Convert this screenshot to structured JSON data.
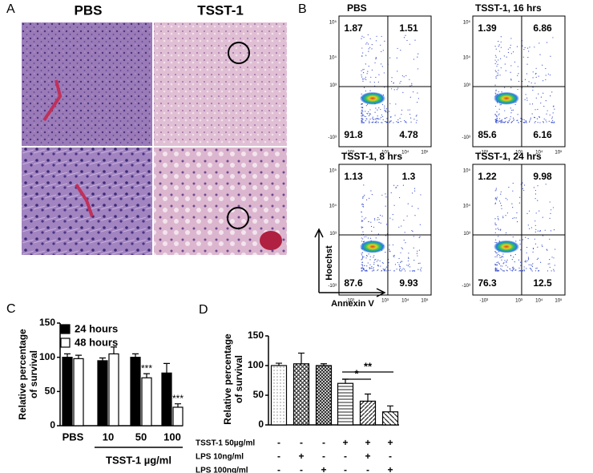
{
  "panel_labels": [
    "A",
    "B",
    "C",
    "D"
  ],
  "histology": {
    "columns": [
      "PBS",
      "TSST-1"
    ]
  },
  "flow": {
    "y_label": "Hoechst",
    "x_label": "Annexin V",
    "y_tick_labels": [
      "10⁵",
      "10⁴",
      "10³",
      "-10³"
    ],
    "x_tick_labels": [
      "-10³",
      "10³",
      "10⁴",
      "10⁵"
    ],
    "plots": [
      {
        "title": "PBS",
        "quadrants": [
          1.87,
          1.51,
          91.8,
          4.78
        ]
      },
      {
        "title": "TSST-1, 16 hrs",
        "quadrants": [
          1.39,
          6.86,
          85.6,
          6.16
        ]
      },
      {
        "title": "TSST-1, 8 hrs",
        "quadrants": [
          1.13,
          1.3,
          87.6,
          9.93
        ]
      },
      {
        "title": "TSST-1, 24 hrs",
        "quadrants": [
          1.22,
          9.98,
          76.3,
          12.5
        ]
      }
    ]
  },
  "chart_data": [
    {
      "type": "grouped_bar",
      "y_label": "Relative percentage of survival",
      "categories": [
        "PBS",
        "10",
        "50",
        "100"
      ],
      "x_group_label": "TSST-1 µg/ml",
      "series": [
        {
          "name": "24 hours",
          "color": "#000000",
          "values": [
            100,
            95,
            100,
            77
          ],
          "errors": [
            5,
            4,
            5,
            14
          ]
        },
        {
          "name": "48 hours",
          "color": "#ffffff",
          "values": [
            98,
            105,
            70,
            27
          ],
          "errors": [
            5,
            10,
            6,
            5
          ]
        }
      ],
      "annotations": [
        "***",
        "***"
      ],
      "ylim": [
        0,
        150
      ],
      "yticks": [
        0,
        50,
        100,
        150
      ]
    },
    {
      "type": "bar",
      "y_label": "Relative percentage of survival",
      "values": [
        100,
        103,
        100,
        70,
        40,
        22
      ],
      "errors": [
        4,
        18,
        3,
        7,
        12,
        10
      ],
      "conditions": [
        {
          "label": "TSST-1 50µg/ml",
          "marks": [
            "-",
            "-",
            "-",
            "+",
            "+",
            "+"
          ]
        },
        {
          "label": "LPS 10ng/ml",
          "marks": [
            "-",
            "+",
            "-",
            "-",
            "+",
            "-"
          ]
        },
        {
          "label": "LPS 100ng/ml",
          "marks": [
            "-",
            "-",
            "+",
            "-",
            "-",
            "+"
          ]
        }
      ],
      "annotations": [
        "*",
        "**"
      ],
      "ylim": [
        0,
        150
      ],
      "yticks": [
        0,
        50,
        100,
        150
      ]
    }
  ]
}
